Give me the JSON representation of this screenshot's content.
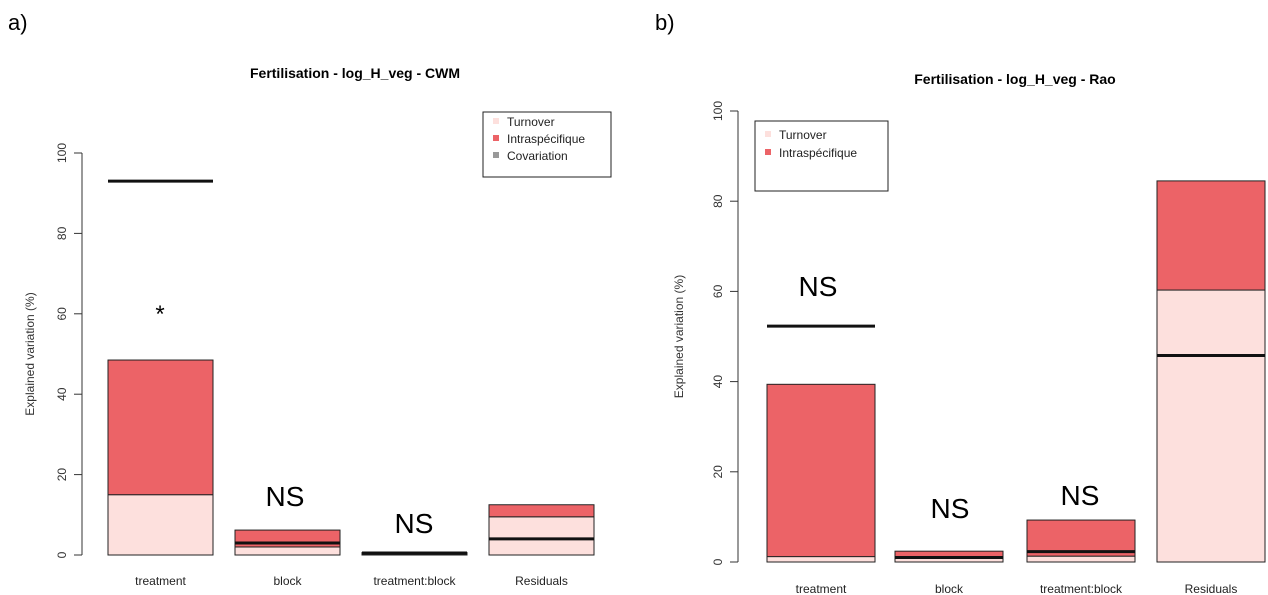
{
  "colors": {
    "turnover": "#fde0dd",
    "intraspecific": "#ec6367",
    "outline": "#222222",
    "total_line": "#111111"
  },
  "chart_data": [
    {
      "panel_label": "a)",
      "type": "bar",
      "stacked": true,
      "title": "Fertilisation - log_H_veg - CWM",
      "xlabel": "",
      "ylabel": "Explained variation (%)",
      "ylim": [
        0,
        100
      ],
      "yticks": [
        "0",
        "20",
        "40",
        "60",
        "80",
        "100"
      ],
      "categories": [
        "treatment",
        "block",
        "treatment:block",
        "Residuals"
      ],
      "series": [
        {
          "name": "Turnover",
          "values": [
            15,
            2,
            0.3,
            9.5
          ]
        },
        {
          "name": "Intraspécifique",
          "values": [
            33.5,
            4.2,
            0.3,
            3
          ]
        }
      ],
      "total": [
        93,
        3,
        0.5,
        4
      ],
      "annotations": [
        "*",
        "NS",
        "NS",
        ""
      ],
      "legend": {
        "entries": [
          "Turnover",
          "Intraspécifique",
          "Covariation"
        ],
        "position": "top-right"
      }
    },
    {
      "panel_label": "b)",
      "type": "bar",
      "stacked": true,
      "title": "Fertilisation - log_H_veg - Rao",
      "xlabel": "",
      "ylabel": "Explained variation (%)",
      "ylim": [
        0,
        100
      ],
      "yticks": [
        "0",
        "20",
        "40",
        "60",
        "80",
        "100"
      ],
      "categories": [
        "treatment",
        "block",
        "treatment:block",
        "Residuals"
      ],
      "series": [
        {
          "name": "Turnover",
          "values": [
            1.2,
            0.8,
            1.3,
            60.3
          ]
        },
        {
          "name": "Intraspécifique",
          "values": [
            38.2,
            1.6,
            8.0,
            24.2
          ]
        }
      ],
      "total": [
        52.3,
        1,
        2.3,
        45.8
      ],
      "annotations": [
        "NS",
        "NS",
        "NS",
        ""
      ],
      "legend": {
        "entries": [
          "Turnover",
          "Intraspécifique"
        ],
        "position": "top-left"
      }
    }
  ]
}
